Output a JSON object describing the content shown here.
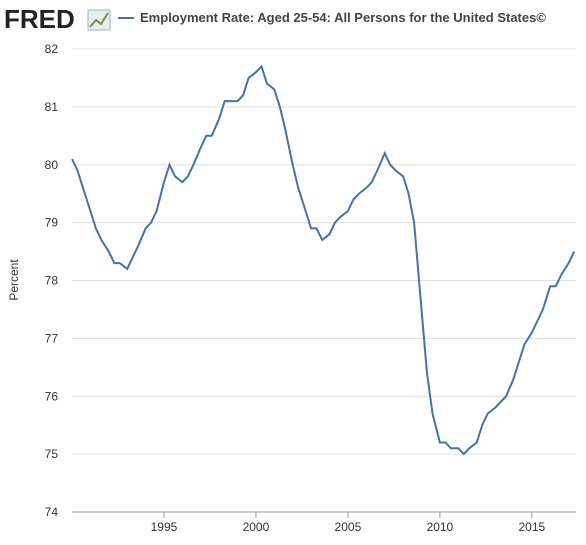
{
  "logo": "FRED",
  "chart_data": {
    "type": "line",
    "title": "Employment Rate: Aged 25-54: All Persons for the United States©",
    "ylabel": "Percent",
    "xlim": [
      1990.0,
      2017.4
    ],
    "xticks": [
      1995,
      2000,
      2005,
      2010,
      2015
    ],
    "ylim": [
      74,
      82
    ],
    "yticks": [
      74,
      75,
      76,
      77,
      78,
      79,
      80,
      81,
      82
    ],
    "grid": true,
    "x": [
      1990.0,
      1990.3,
      1990.6,
      1991.0,
      1991.3,
      1991.6,
      1992.0,
      1992.3,
      1992.6,
      1993.0,
      1993.3,
      1993.6,
      1994.0,
      1994.3,
      1994.6,
      1995.0,
      1995.3,
      1995.6,
      1996.0,
      1996.3,
      1996.6,
      1997.0,
      1997.3,
      1997.6,
      1998.0,
      1998.3,
      1998.6,
      1999.0,
      1999.3,
      1999.6,
      2000.0,
      2000.3,
      2000.6,
      2001.0,
      2001.3,
      2001.6,
      2002.0,
      2002.3,
      2002.6,
      2003.0,
      2003.3,
      2003.6,
      2004.0,
      2004.3,
      2004.6,
      2005.0,
      2005.3,
      2005.6,
      2006.0,
      2006.3,
      2006.6,
      2007.0,
      2007.3,
      2007.6,
      2008.0,
      2008.3,
      2008.6,
      2009.0,
      2009.3,
      2009.6,
      2010.0,
      2010.3,
      2010.6,
      2011.0,
      2011.3,
      2011.6,
      2012.0,
      2012.3,
      2012.6,
      2013.0,
      2013.3,
      2013.6,
      2014.0,
      2014.3,
      2014.6,
      2015.0,
      2015.3,
      2015.6,
      2016.0,
      2016.3,
      2016.6,
      2017.0,
      2017.3
    ],
    "series": [
      {
        "name": "Employment Rate: Aged 25-54: All Persons for the United States©",
        "color": "#4572a7",
        "values": [
          80.1,
          79.9,
          79.6,
          79.2,
          78.9,
          78.7,
          78.5,
          78.3,
          78.3,
          78.2,
          78.4,
          78.6,
          78.9,
          79.0,
          79.2,
          79.7,
          80.0,
          79.8,
          79.7,
          79.8,
          80.0,
          80.3,
          80.5,
          80.5,
          80.8,
          81.1,
          81.1,
          81.1,
          81.2,
          81.5,
          81.6,
          81.7,
          81.4,
          81.3,
          81.0,
          80.6,
          80.0,
          79.6,
          79.3,
          78.9,
          78.9,
          78.7,
          78.8,
          79.0,
          79.1,
          79.2,
          79.4,
          79.5,
          79.6,
          79.7,
          79.9,
          80.2,
          80.0,
          79.9,
          79.8,
          79.5,
          79.0,
          77.5,
          76.4,
          75.7,
          75.2,
          75.2,
          75.1,
          75.1,
          75.0,
          75.1,
          75.2,
          75.5,
          75.7,
          75.8,
          75.9,
          76.0,
          76.3,
          76.6,
          76.9,
          77.1,
          77.3,
          77.5,
          77.9,
          77.9,
          78.1,
          78.3,
          78.5
        ]
      }
    ]
  }
}
